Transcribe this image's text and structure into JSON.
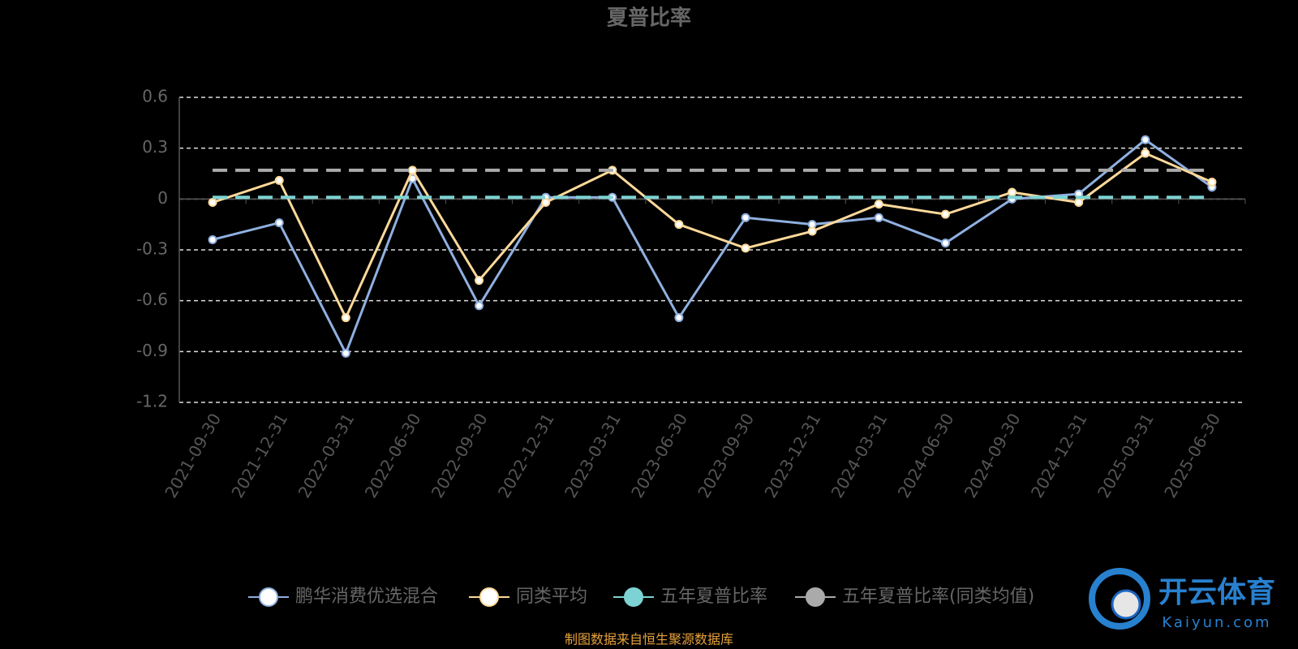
{
  "chart_data": {
    "type": "line",
    "title": "夏普比率",
    "categories": [
      "2021-09-30",
      "2021-12-31",
      "2022-03-31",
      "2022-06-30",
      "2022-09-30",
      "2022-12-31",
      "2023-03-31",
      "2023-06-30",
      "2023-09-30",
      "2023-12-31",
      "2024-03-31",
      "2024-06-30",
      "2024-09-30",
      "2024-12-31",
      "2025-03-31",
      "2025-06-30"
    ],
    "series": [
      {
        "name": "鹏华消费优选混合",
        "color": "#8fb0e0",
        "values": [
          -0.24,
          -0.14,
          -0.91,
          0.12,
          -0.63,
          0.01,
          0.01,
          -0.7,
          -0.11,
          -0.15,
          -0.11,
          -0.26,
          0.0,
          0.03,
          0.35,
          0.07
        ]
      },
      {
        "name": "同类平均",
        "color": "#ffd99a",
        "values": [
          -0.02,
          0.11,
          -0.7,
          0.17,
          -0.48,
          -0.02,
          0.17,
          -0.15,
          -0.29,
          -0.19,
          -0.03,
          -0.09,
          0.04,
          -0.02,
          0.27,
          0.1
        ]
      },
      {
        "name": "五年夏普比率",
        "color": "#7dd3d3",
        "dashed": true,
        "values": [
          0.01,
          0.01,
          0.01,
          0.01,
          0.01,
          0.01,
          0.01,
          0.01,
          0.01,
          0.01,
          0.01,
          0.01,
          0.01,
          0.01,
          0.01,
          0.01
        ]
      },
      {
        "name": "五年夏普比率(同类均值)",
        "color": "#aaaaaa",
        "dashed": true,
        "values": [
          0.17,
          0.17,
          0.17,
          0.17,
          0.17,
          0.17,
          0.17,
          0.17,
          0.17,
          0.17,
          0.17,
          0.17,
          0.17,
          0.17,
          0.17,
          0.17
        ]
      }
    ],
    "ylim": [
      -1.2,
      0.6
    ],
    "yticks": [
      0.6,
      0.3,
      0,
      -0.3,
      -0.6,
      -0.9,
      -1.2
    ],
    "grid": true,
    "source": "制图数据来自恒生聚源数据库",
    "watermark": {
      "brand": "开云体育",
      "site": "Kaiyun.com"
    }
  }
}
